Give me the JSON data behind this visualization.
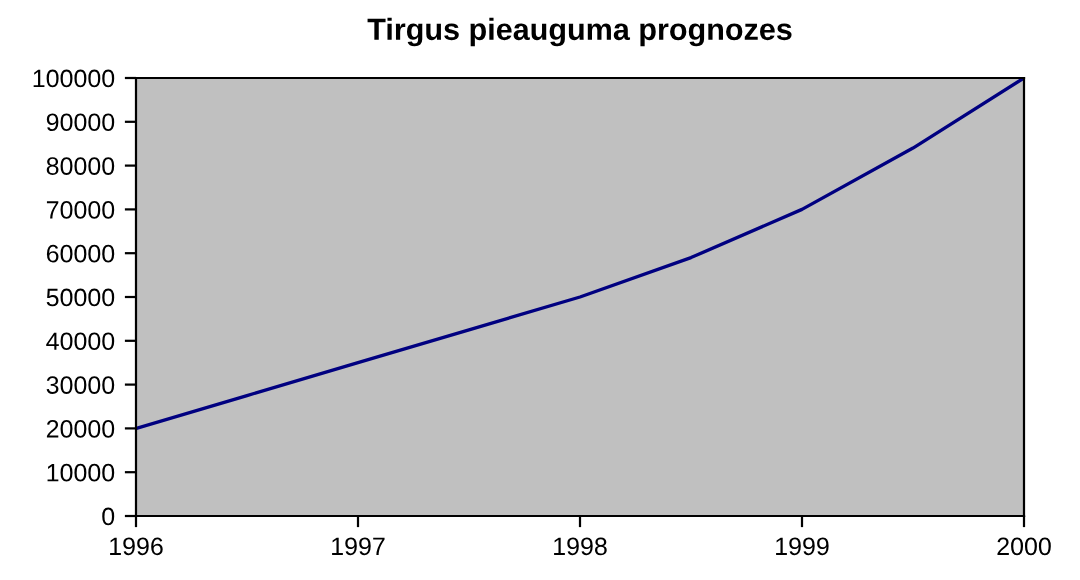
{
  "chart_data": {
    "type": "line",
    "title": "Tirgus pieauguma prognozes",
    "x": [
      1996,
      1996.5,
      1997,
      1997.5,
      1998,
      1998.5,
      1999,
      1999.5,
      2000
    ],
    "series": [
      {
        "color": "#000080",
        "values": [
          20000,
          27500,
          35000,
          42500,
          50000,
          59000,
          70000,
          84000,
          100000
        ]
      }
    ],
    "xlim": [
      1996,
      2000
    ],
    "xticks": [
      1996,
      1997,
      1998,
      1999,
      2000
    ],
    "ylim": [
      0,
      100000
    ],
    "yticks": [
      0,
      10000,
      20000,
      30000,
      40000,
      50000,
      60000,
      70000,
      80000,
      90000,
      100000
    ],
    "grid": false,
    "legend": false,
    "marker": "none",
    "line_style": "solid"
  }
}
